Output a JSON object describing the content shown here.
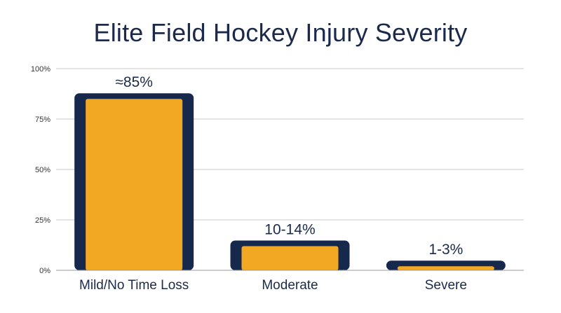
{
  "chart_data": {
    "type": "bar",
    "title": "Elite Field Hockey Injury Severity",
    "categories": [
      "Mild/No Time Loss",
      "Moderate",
      "Severe"
    ],
    "values": [
      85,
      12,
      2
    ],
    "data_labels": [
      "≈85%",
      "10-14%",
      "1-3%"
    ],
    "ylim": [
      0,
      100
    ],
    "yticks": [
      0,
      25,
      50,
      75,
      100
    ],
    "ytick_labels": [
      "0%",
      "25%",
      "50%",
      "75%",
      "100%"
    ],
    "xlabel": "",
    "ylabel": "",
    "grid": true,
    "colors": {
      "bar_fill": "#f3a823",
      "bar_border": "#16284b",
      "gridline": "#c8c8c8",
      "text": "#1b2a4a"
    }
  }
}
